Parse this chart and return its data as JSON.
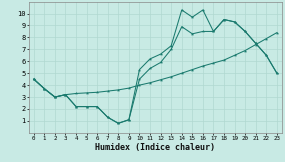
{
  "xlabel": "Humidex (Indice chaleur)",
  "bg_color": "#c8eae4",
  "line_color": "#1a7a6e",
  "grid_color": "#b0d8d0",
  "xlim": [
    -0.5,
    23.5
  ],
  "ylim": [
    0,
    11
  ],
  "xticks": [
    0,
    1,
    2,
    3,
    4,
    5,
    6,
    7,
    8,
    9,
    10,
    11,
    12,
    13,
    14,
    15,
    16,
    17,
    18,
    19,
    20,
    21,
    22,
    23
  ],
  "yticks": [
    1,
    2,
    3,
    4,
    5,
    6,
    7,
    8,
    9,
    10
  ],
  "line1": {
    "x": [
      0,
      1,
      2,
      3,
      4,
      5,
      6,
      7,
      8,
      9,
      10,
      11,
      12,
      13,
      14,
      15,
      16,
      17,
      18,
      19,
      20,
      21,
      22,
      23
    ],
    "y": [
      4.5,
      3.7,
      3.0,
      3.2,
      3.3,
      3.35,
      3.4,
      3.5,
      3.6,
      3.75,
      4.0,
      4.2,
      4.45,
      4.7,
      5.0,
      5.3,
      5.6,
      5.85,
      6.1,
      6.5,
      6.9,
      7.4,
      7.9,
      8.4
    ]
  },
  "line2": {
    "x": [
      0,
      1,
      2,
      3,
      4,
      5,
      6,
      7,
      8,
      9,
      10,
      11,
      12,
      13,
      14,
      15,
      16,
      17,
      18,
      19,
      20,
      21,
      22,
      23
    ],
    "y": [
      4.5,
      3.7,
      3.0,
      3.2,
      2.2,
      2.2,
      2.2,
      1.3,
      0.8,
      1.1,
      5.3,
      6.2,
      6.6,
      7.3,
      10.3,
      9.7,
      10.3,
      8.5,
      9.5,
      9.3,
      8.5,
      7.5,
      6.5,
      5.0
    ]
  },
  "line3": {
    "x": [
      0,
      1,
      2,
      3,
      4,
      5,
      6,
      7,
      8,
      9,
      10,
      11,
      12,
      13,
      14,
      15,
      16,
      17,
      18,
      19,
      20,
      21,
      22,
      23
    ],
    "y": [
      4.5,
      3.7,
      3.0,
      3.2,
      2.2,
      2.2,
      2.2,
      1.3,
      0.8,
      1.1,
      4.5,
      5.4,
      5.9,
      7.0,
      8.9,
      8.3,
      8.5,
      8.5,
      9.5,
      9.3,
      8.5,
      7.5,
      6.5,
      5.0
    ]
  }
}
